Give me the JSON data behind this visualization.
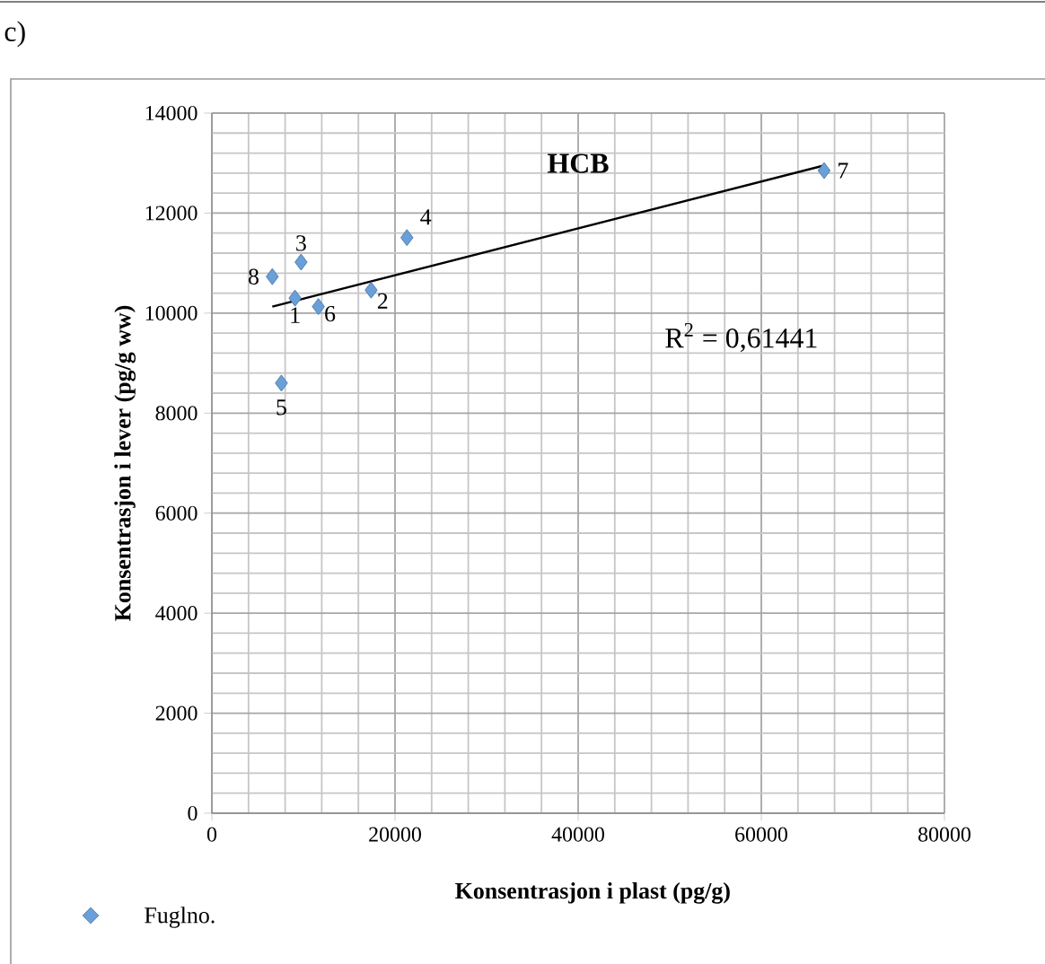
{
  "chart_data": {
    "type": "scatter",
    "title": "HCB",
    "xlabel": "Konsentrasjon i plast (pg/g)",
    "ylabel": "Konsentrasjon i lever (pg/g ww)",
    "xlim": [
      0,
      80000
    ],
    "ylim": [
      0,
      14000
    ],
    "xticks": [
      0,
      20000,
      40000,
      60000,
      80000
    ],
    "yticks": [
      0,
      2000,
      4000,
      6000,
      8000,
      10000,
      12000,
      14000
    ],
    "grid": true,
    "legend": "bottom left",
    "marker": "diamond",
    "series": [
      {
        "name": "Fuglno.",
        "type": "scatter",
        "color": "#6a9fd8",
        "x": [
          9080,
          17390,
          9740,
          21300,
          7590,
          11630,
          66860,
          6600
        ],
        "values": [
          10300,
          10460,
          11020,
          11510,
          8600,
          10130,
          12850,
          10730
        ]
      },
      {
        "type": "line",
        "color": "#000000",
        "marker": "none",
        "x": [
          6600,
          66800
        ],
        "values": [
          10130,
          12950
        ]
      }
    ],
    "annotations": [
      "c)",
      "R$^{2}$ = 0,61441",
      {
        "text": "1",
        "x": 9080,
        "y": 10300
      },
      {
        "text": "2",
        "x": 17390,
        "y": 10460
      },
      {
        "text": "3",
        "x": 9740,
        "y": 11020
      },
      {
        "text": "4",
        "x": 21300,
        "y": 11510
      },
      {
        "text": "5",
        "x": 7590,
        "y": 8600
      },
      {
        "text": "6",
        "x": 11630,
        "y": 10130
      },
      {
        "text": "7",
        "x": 66860,
        "y": 12850
      },
      {
        "text": "8",
        "x": 6600,
        "y": 10730
      }
    ]
  }
}
